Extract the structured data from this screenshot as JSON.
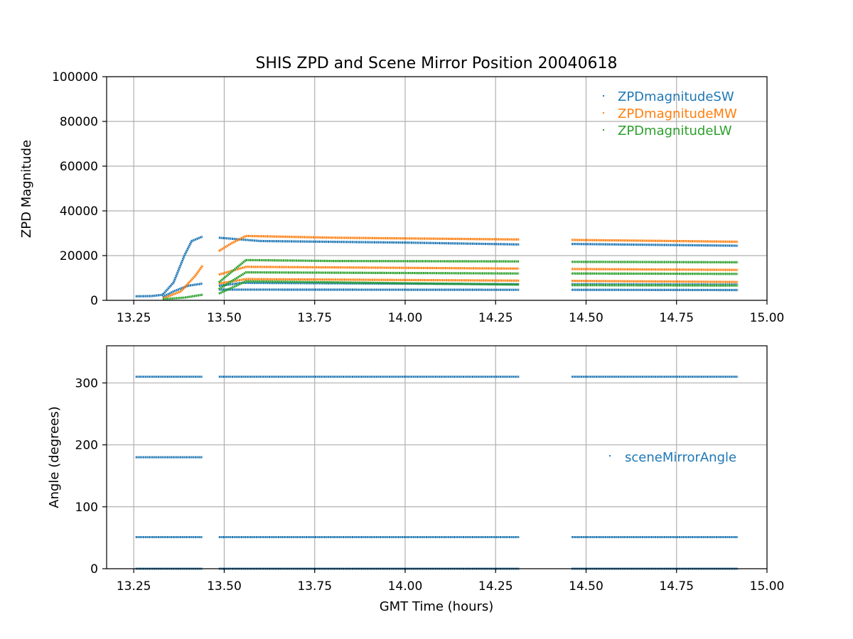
{
  "title": "SHIS ZPD and Scene Mirror Position 20040618",
  "colors": {
    "sw": "#1f77b4",
    "mw": "#ff7f0e",
    "lw": "#2ca02c",
    "angle": "#1f77b4",
    "grid": "#b0b0b0"
  },
  "chart_data": [
    {
      "type": "scatter",
      "title": "SHIS ZPD and Scene Mirror Position 20040618",
      "xlabel": "",
      "ylabel": "ZPD Magnitude",
      "xlim": [
        13.175,
        15.0
      ],
      "ylim": [
        0,
        100000
      ],
      "x_ticks": [
        "13.25",
        "13.50",
        "13.75",
        "14.00",
        "14.25",
        "14.50",
        "14.75",
        "15.00"
      ],
      "y_ticks": [
        "0",
        "20000",
        "40000",
        "60000",
        "80000",
        "100000"
      ],
      "x_tick_values": [
        13.25,
        13.5,
        13.75,
        14.0,
        14.25,
        14.5,
        14.75,
        15.0
      ],
      "y_tick_values": [
        0,
        20000,
        40000,
        60000,
        80000,
        100000
      ],
      "grid": true,
      "legend_position": "top-right",
      "segments": [
        [
          13.255,
          13.44
        ],
        [
          13.485,
          14.315
        ],
        [
          14.46,
          14.92
        ]
      ],
      "series": [
        {
          "name": "ZPDmagnitudeSW",
          "color": "#1f77b4",
          "traces": [
            {
              "points": [
                [
                  13.255,
                  1800
                ],
                [
                  13.3,
                  1900
                ],
                [
                  13.33,
                  2500
                ],
                [
                  13.36,
                  8000
                ],
                [
                  13.39,
                  20000
                ],
                [
                  13.41,
                  26500
                ],
                [
                  13.44,
                  28500
                ]
              ]
            },
            {
              "points": [
                [
                  13.485,
                  28000
                ],
                [
                  13.6,
                  26500
                ],
                [
                  14.0,
                  25800
                ],
                [
                  14.315,
                  25000
                ]
              ]
            },
            {
              "points": [
                [
                  14.46,
                  25200
                ],
                [
                  14.7,
                  24800
                ],
                [
                  14.92,
                  24400
                ]
              ]
            },
            {
              "points": [
                [
                  13.33,
                  1500
                ],
                [
                  13.36,
                  4000
                ],
                [
                  13.4,
                  6500
                ],
                [
                  13.44,
                  7500
                ]
              ]
            },
            {
              "points": [
                [
                  13.485,
                  6500
                ],
                [
                  13.55,
                  7800
                ],
                [
                  14.315,
                  7200
                ]
              ]
            },
            {
              "points": [
                [
                  14.46,
                  7200
                ],
                [
                  14.92,
                  7000
                ]
              ]
            },
            {
              "points": [
                [
                  13.485,
                  4800
                ],
                [
                  14.315,
                  4700
                ]
              ]
            },
            {
              "points": [
                [
                  14.46,
                  4700
                ],
                [
                  14.92,
                  4600
                ]
              ]
            }
          ]
        },
        {
          "name": "ZPDmagnitudeMW",
          "color": "#ff7f0e",
          "traces": [
            {
              "points": [
                [
                  13.33,
                  800
                ],
                [
                  13.38,
                  4000
                ],
                [
                  13.42,
                  11000
                ],
                [
                  13.44,
                  15500
                ]
              ]
            },
            {
              "points": [
                [
                  13.485,
                  22000
                ],
                [
                  13.52,
                  25500
                ],
                [
                  13.56,
                  28800
                ],
                [
                  13.8,
                  28000
                ],
                [
                  14.315,
                  27200
                ]
              ]
            },
            {
              "points": [
                [
                  14.46,
                  27000
                ],
                [
                  14.92,
                  26200
                ]
              ]
            },
            {
              "points": [
                [
                  13.485,
                  11500
                ],
                [
                  13.56,
                  15000
                ],
                [
                  14.315,
                  14200
                ]
              ]
            },
            {
              "points": [
                [
                  14.46,
                  14000
                ],
                [
                  14.92,
                  13600
                ]
              ]
            },
            {
              "points": [
                [
                  13.485,
                  7500
                ],
                [
                  13.56,
                  9500
                ],
                [
                  14.315,
                  8800
                ]
              ]
            },
            {
              "points": [
                [
                  14.46,
                  8700
                ],
                [
                  14.92,
                  8200
                ]
              ]
            }
          ]
        },
        {
          "name": "ZPDmagnitudeLW",
          "color": "#2ca02c",
          "traces": [
            {
              "points": [
                [
                  13.33,
                  500
                ],
                [
                  13.39,
                  1200
                ],
                [
                  13.44,
                  2500
                ]
              ]
            },
            {
              "points": [
                [
                  13.485,
                  8000
                ],
                [
                  13.56,
                  18000
                ],
                [
                  13.8,
                  17600
                ],
                [
                  14.315,
                  17400
                ]
              ]
            },
            {
              "points": [
                [
                  14.46,
                  17200
                ],
                [
                  14.92,
                  17000
                ]
              ]
            },
            {
              "points": [
                [
                  13.485,
                  5000
                ],
                [
                  13.56,
                  12500
                ],
                [
                  14.315,
                  12000
                ]
              ]
            },
            {
              "points": [
                [
                  14.46,
                  12000
                ],
                [
                  14.92,
                  11800
                ]
              ]
            },
            {
              "points": [
                [
                  13.485,
                  3000
                ],
                [
                  13.56,
                  8500
                ],
                [
                  14.315,
                  7000
                ]
              ]
            },
            {
              "points": [
                [
                  14.46,
                  6800
                ],
                [
                  14.92,
                  6600
                ]
              ]
            }
          ]
        }
      ]
    },
    {
      "type": "scatter",
      "title": "",
      "xlabel": "GMT Time (hours)",
      "ylabel": "Angle (degrees)",
      "xlim": [
        13.175,
        15.0
      ],
      "ylim": [
        0,
        360
      ],
      "x_ticks": [
        "13.25",
        "13.50",
        "13.75",
        "14.00",
        "14.25",
        "14.50",
        "14.75",
        "15.00"
      ],
      "y_ticks": [
        "0",
        "100",
        "200",
        "300"
      ],
      "x_tick_values": [
        13.25,
        13.5,
        13.75,
        14.0,
        14.25,
        14.5,
        14.75,
        15.0
      ],
      "y_tick_values": [
        0,
        100,
        200,
        300
      ],
      "grid": true,
      "legend_position": "center-right",
      "series": [
        {
          "name": "sceneMirrorAngle",
          "color": "#1f77b4",
          "levels": [
            {
              "y": 310,
              "ranges": [
                [
                  13.255,
                  13.44
                ],
                [
                  13.485,
                  14.315
                ],
                [
                  14.46,
                  14.92
                ]
              ]
            },
            {
              "y": 180,
              "ranges": [
                [
                  13.255,
                  13.44
                ]
              ]
            },
            {
              "y": 51,
              "ranges": [
                [
                  13.255,
                  13.44
                ],
                [
                  13.485,
                  14.315
                ],
                [
                  14.46,
                  14.92
                ]
              ]
            },
            {
              "y": 0,
              "ranges": [
                [
                  13.255,
                  13.44
                ],
                [
                  13.485,
                  14.315
                ],
                [
                  14.46,
                  14.92
                ]
              ]
            }
          ]
        }
      ]
    }
  ]
}
